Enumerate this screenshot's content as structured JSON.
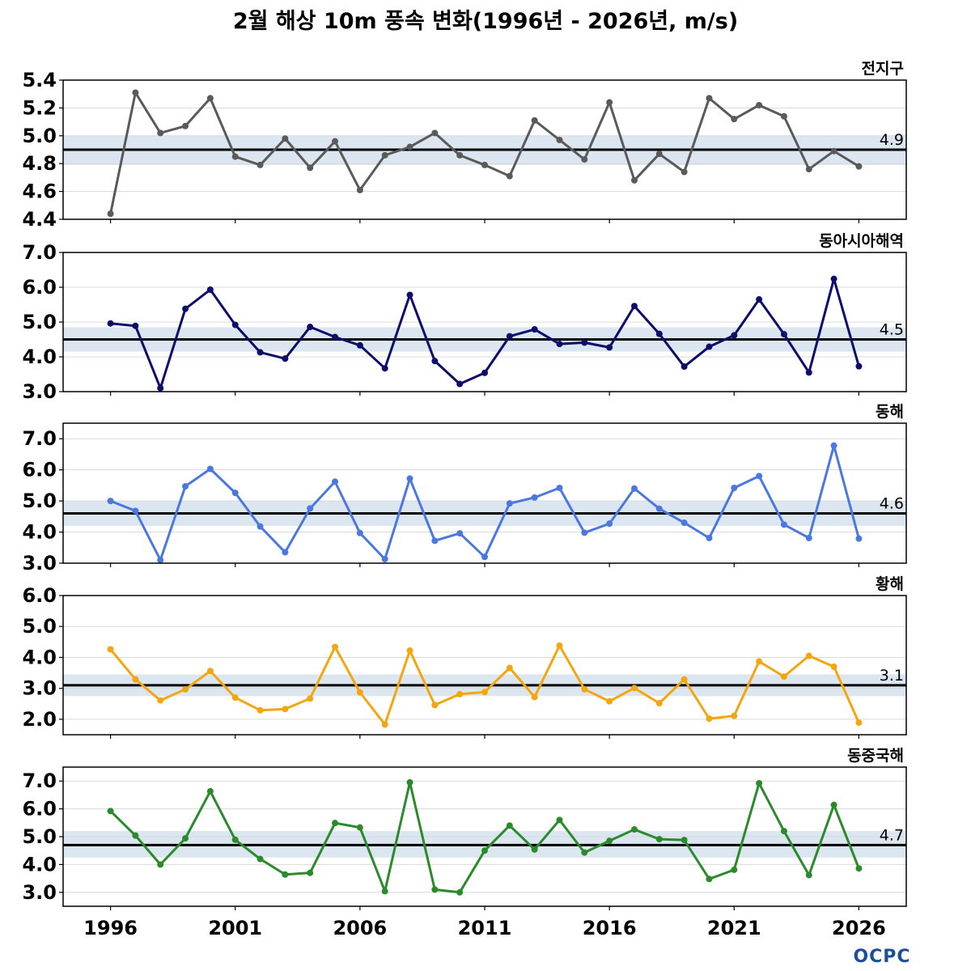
{
  "title": "2월 해상 10m 풍속 변화(1996년 - 2026년, m/s)",
  "logo": "OCPC",
  "colors": {
    "band": "#dce6f0",
    "mean_line": "#000000",
    "grid": "#d9d9d9"
  },
  "chart_data": [
    {
      "type": "line",
      "name": "전지구",
      "color": "#5a5a5a",
      "mean": 4.9,
      "mean_label": "4.9",
      "band": [
        4.79,
        5.0
      ],
      "ylim": [
        4.4,
        5.4
      ],
      "yticks": [
        4.4,
        4.6,
        4.8,
        5.0,
        5.2,
        5.4
      ],
      "ytick_labels": [
        "4.4",
        "4.6",
        "4.8",
        "5.0",
        "5.2",
        "5.4"
      ],
      "x": [
        1996,
        1997,
        1998,
        1999,
        2000,
        2001,
        2002,
        2003,
        2004,
        2005,
        2006,
        2007,
        2008,
        2009,
        2010,
        2011,
        2012,
        2013,
        2014,
        2015,
        2016,
        2017,
        2018,
        2019,
        2020,
        2021,
        2022,
        2023,
        2024,
        2025,
        2026
      ],
      "values": [
        4.44,
        5.31,
        5.02,
        5.07,
        5.27,
        4.85,
        4.79,
        4.98,
        4.77,
        4.96,
        4.61,
        4.86,
        4.92,
        5.02,
        4.86,
        4.79,
        4.71,
        5.11,
        4.97,
        4.83,
        5.24,
        4.68,
        4.87,
        4.74,
        5.27,
        5.12,
        5.22,
        5.14,
        4.76,
        4.89,
        4.78
      ]
    },
    {
      "type": "line",
      "name": "동아시아해역",
      "color": "#0d0d6b",
      "mean": 4.5,
      "mean_label": "4.5",
      "band": [
        4.15,
        4.85
      ],
      "ylim": [
        3.0,
        7.0
      ],
      "yticks": [
        3.0,
        4.0,
        5.0,
        6.0,
        7.0
      ],
      "ytick_labels": [
        "3.0",
        "4.0",
        "5.0",
        "6.0",
        "7.0"
      ],
      "x": [
        1996,
        1997,
        1998,
        1999,
        2000,
        2001,
        2002,
        2003,
        2004,
        2005,
        2006,
        2007,
        2008,
        2009,
        2010,
        2011,
        2012,
        2013,
        2014,
        2015,
        2016,
        2017,
        2018,
        2019,
        2020,
        2021,
        2022,
        2023,
        2024,
        2025,
        2026
      ],
      "values": [
        4.96,
        4.89,
        3.1,
        5.38,
        5.93,
        4.92,
        4.13,
        3.95,
        4.86,
        4.57,
        4.33,
        3.67,
        5.78,
        3.88,
        3.22,
        3.54,
        4.59,
        4.79,
        4.37,
        4.41,
        4.27,
        5.46,
        4.66,
        3.72,
        4.29,
        4.62,
        5.65,
        4.65,
        3.55,
        6.24,
        3.73
      ]
    },
    {
      "type": "line",
      "name": "동해",
      "color": "#4a78e0",
      "mean": 4.6,
      "mean_label": "4.6",
      "band": [
        4.2,
        5.0
      ],
      "ylim": [
        3.0,
        7.5
      ],
      "yticks": [
        3.0,
        4.0,
        5.0,
        6.0,
        7.0
      ],
      "ytick_labels": [
        "3.0",
        "4.0",
        "5.0",
        "6.0",
        "7.0"
      ],
      "x": [
        1996,
        1997,
        1998,
        1999,
        2000,
        2001,
        2002,
        2003,
        2004,
        2005,
        2006,
        2007,
        2008,
        2009,
        2010,
        2011,
        2012,
        2013,
        2014,
        2015,
        2016,
        2017,
        2018,
        2019,
        2020,
        2021,
        2022,
        2023,
        2024,
        2025,
        2026
      ],
      "values": [
        5.0,
        4.68,
        3.1,
        5.47,
        6.03,
        5.26,
        4.18,
        3.35,
        4.76,
        5.62,
        3.97,
        3.13,
        5.72,
        3.72,
        3.96,
        3.2,
        4.92,
        5.11,
        5.42,
        3.98,
        4.27,
        5.4,
        4.75,
        4.3,
        3.81,
        5.42,
        5.8,
        4.24,
        3.81,
        6.78,
        3.79
      ]
    },
    {
      "type": "line",
      "name": "황해",
      "color": "#f3a60d",
      "mean": 3.1,
      "mean_label": "3.1",
      "band": [
        2.75,
        3.45
      ],
      "ylim": [
        1.5,
        6.0
      ],
      "yticks": [
        2.0,
        3.0,
        4.0,
        5.0,
        6.0
      ],
      "ytick_labels": [
        "2.0",
        "3.0",
        "4.0",
        "5.0",
        "6.0"
      ],
      "x": [
        1996,
        1997,
        1998,
        1999,
        2000,
        2001,
        2002,
        2003,
        2004,
        2005,
        2006,
        2007,
        2008,
        2009,
        2010,
        2011,
        2012,
        2013,
        2014,
        2015,
        2016,
        2017,
        2018,
        2019,
        2020,
        2021,
        2022,
        2023,
        2024,
        2025,
        2026
      ],
      "values": [
        4.26,
        3.29,
        2.61,
        2.97,
        3.56,
        2.7,
        2.29,
        2.33,
        2.67,
        4.34,
        2.87,
        1.83,
        4.22,
        2.46,
        2.81,
        2.88,
        3.66,
        2.72,
        4.38,
        2.97,
        2.58,
        3.01,
        2.52,
        3.29,
        2.02,
        2.11,
        3.87,
        3.38,
        4.05,
        3.7,
        1.89
      ]
    },
    {
      "type": "line",
      "name": "동중국해",
      "color": "#2b8a2b",
      "mean": 4.7,
      "mean_label": "4.7",
      "band": [
        4.25,
        5.2
      ],
      "ylim": [
        2.5,
        7.5
      ],
      "yticks": [
        3.0,
        4.0,
        5.0,
        6.0,
        7.0
      ],
      "ytick_labels": [
        "3.0",
        "4.0",
        "5.0",
        "6.0",
        "7.0"
      ],
      "x": [
        1996,
        1997,
        1998,
        1999,
        2000,
        2001,
        2002,
        2003,
        2004,
        2005,
        2006,
        2007,
        2008,
        2009,
        2010,
        2011,
        2012,
        2013,
        2014,
        2015,
        2016,
        2017,
        2018,
        2019,
        2020,
        2021,
        2022,
        2023,
        2024,
        2025,
        2026
      ],
      "values": [
        5.92,
        5.04,
        4.0,
        4.94,
        6.63,
        4.89,
        4.2,
        3.64,
        3.7,
        5.49,
        5.33,
        3.04,
        6.95,
        3.1,
        3.0,
        4.5,
        5.4,
        4.54,
        5.6,
        4.43,
        4.85,
        5.26,
        4.91,
        4.88,
        3.48,
        3.81,
        6.92,
        5.2,
        3.62,
        6.14,
        3.86
      ]
    }
  ],
  "xaxis": {
    "ticks": [
      1996,
      2001,
      2006,
      2011,
      2016,
      2021,
      2026
    ],
    "tick_labels": [
      "1996",
      "2001",
      "2006",
      "2011",
      "2016",
      "2021",
      "2026"
    ]
  }
}
